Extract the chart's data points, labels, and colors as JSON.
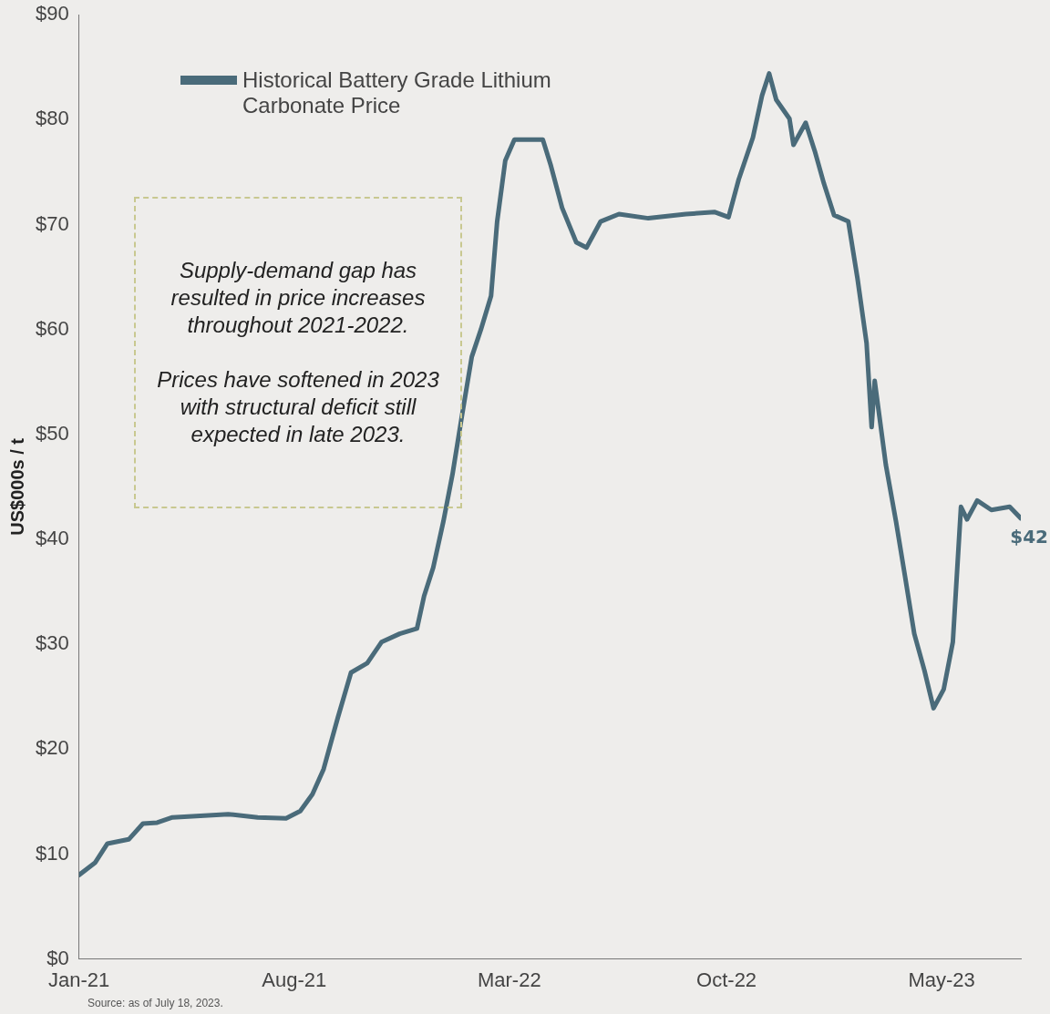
{
  "chart_data": {
    "type": "line",
    "ylabel": "US$000s / t",
    "x": [
      "2021-01-01",
      "2021-01-17",
      "2021-01-29",
      "2021-02-19",
      "2021-03-05",
      "2021-03-19",
      "2021-04-03",
      "2021-05-28",
      "2021-06-26",
      "2021-07-24",
      "2021-08-07",
      "2021-08-19",
      "2021-08-30",
      "2021-09-13",
      "2021-09-26",
      "2021-10-12",
      "2021-10-26",
      "2021-11-13",
      "2021-11-30",
      "2021-12-07",
      "2021-12-16",
      "2021-12-26",
      "2022-01-04",
      "2022-01-13",
      "2022-01-23",
      "2022-02-01",
      "2022-02-11",
      "2022-02-17",
      "2022-02-25",
      "2022-03-06",
      "2022-04-03",
      "2022-04-11",
      "2022-04-22",
      "2022-05-06",
      "2022-05-16",
      "2022-05-30",
      "2022-06-17",
      "2022-07-16",
      "2022-08-22",
      "2022-09-19",
      "2022-10-03",
      "2022-10-13",
      "2022-10-27",
      "2022-11-05",
      "2022-11-12",
      "2022-11-19",
      "2022-12-02",
      "2022-12-06",
      "2022-12-18",
      "2022-12-27",
      "2023-01-05",
      "2023-01-15",
      "2023-01-29",
      "2023-02-07",
      "2023-02-16",
      "2023-02-21",
      "2023-02-24",
      "2023-03-07",
      "2023-03-17",
      "2023-03-26",
      "2023-04-04",
      "2023-04-14",
      "2023-04-23",
      "2023-05-03",
      "2023-05-12",
      "2023-05-20",
      "2023-05-26",
      "2023-06-05",
      "2023-06-19",
      "2023-07-07",
      "2023-07-18"
    ],
    "series": [
      {
        "name": "Historical Battery Grade Lithium Carbonate Price",
        "color": "#4a6b7a",
        "values": [
          8,
          9.2,
          11,
          11.4,
          12.9,
          13,
          13.5,
          13.8,
          13.5,
          13.4,
          14.1,
          15.7,
          18.1,
          23,
          27.3,
          28.2,
          30.2,
          31,
          31.5,
          34.6,
          37.3,
          41.7,
          46.2,
          51.6,
          57.4,
          60,
          63.2,
          70.3,
          76.1,
          78.1,
          78.1,
          75.6,
          71.6,
          68.3,
          67.8,
          70.3,
          71,
          70.6,
          71,
          71.2,
          70.7,
          74.3,
          78.3,
          82.3,
          84.4,
          81.9,
          80.1,
          77.6,
          79.7,
          77,
          73.9,
          70.9,
          70.3,
          64.9,
          58.7,
          50.7,
          55.1,
          47.1,
          41.7,
          36.4,
          31,
          27.5,
          23.9,
          25.7,
          30.2,
          43.1,
          41.9,
          43.7,
          42.8,
          43.1,
          42
        ]
      }
    ],
    "xlim": [
      "2021-01-01",
      "2023-07-18"
    ],
    "xticks": [
      {
        "value": "2021-01-01",
        "label": "Jan-21"
      },
      {
        "value": "2021-08-01",
        "label": "Aug-21"
      },
      {
        "value": "2022-03-01",
        "label": "Mar-22"
      },
      {
        "value": "2022-10-01",
        "label": "Oct-22"
      },
      {
        "value": "2023-05-01",
        "label": "May-23"
      }
    ],
    "ylim": [
      0,
      90
    ],
    "yticks": [
      {
        "value": 0,
        "label": "$0"
      },
      {
        "value": 10,
        "label": "$10"
      },
      {
        "value": 20,
        "label": "$20"
      },
      {
        "value": 30,
        "label": "$30"
      },
      {
        "value": 40,
        "label": "$40"
      },
      {
        "value": 50,
        "label": "$50"
      },
      {
        "value": 60,
        "label": "$60"
      },
      {
        "value": 70,
        "label": "$70"
      },
      {
        "value": 80,
        "label": "$80"
      },
      {
        "value": 90,
        "label": "$90"
      }
    ],
    "grid": false,
    "legend": "top left",
    "marker": "none",
    "line_style": "solid",
    "annotations": [
      "Supply-demand gap has resulted in price increases throughout 2021-2022.\n\nPrices have softened in 2023 with structural deficit still expected in late 2023.",
      {
        "text": "$42",
        "x": "2023-07-18",
        "y": 42
      },
      "Source: as of July 18, 2023."
    ]
  }
}
